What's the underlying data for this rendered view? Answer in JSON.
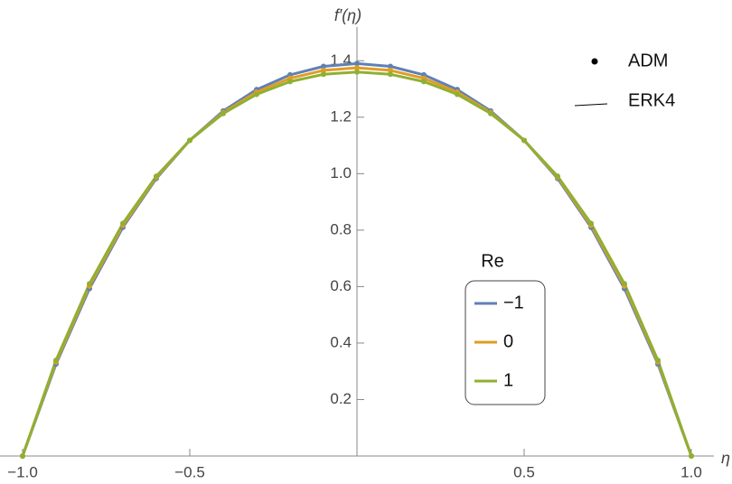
{
  "chart_data": {
    "type": "line",
    "x_label": "η",
    "y_label": "f′(η)",
    "x": [
      -1,
      -0.9,
      -0.8,
      -0.7,
      -0.6,
      -0.5,
      -0.4,
      -0.3,
      -0.2,
      -0.1,
      0,
      0.1,
      0.2,
      0.3,
      0.4,
      0.5,
      0.6,
      0.7,
      0.8,
      0.9,
      1
    ],
    "series": [
      {
        "name": "−1",
        "color": "#5e81b5",
        "values": [
          0,
          0.326,
          0.593,
          0.81,
          0.983,
          1.118,
          1.222,
          1.298,
          1.35,
          1.38,
          1.39,
          1.38,
          1.35,
          1.298,
          1.222,
          1.118,
          0.983,
          0.81,
          0.593,
          0.326,
          0
        ]
      },
      {
        "name": "0",
        "color": "#e19c24",
        "values": [
          0,
          0.333,
          0.602,
          0.817,
          0.987,
          1.118,
          1.217,
          1.289,
          1.338,
          1.366,
          1.375,
          1.366,
          1.338,
          1.289,
          1.217,
          1.118,
          0.987,
          0.817,
          0.602,
          0.333,
          0
        ]
      },
      {
        "name": "1",
        "color": "#8fb032",
        "values": [
          0,
          0.339,
          0.61,
          0.824,
          0.991,
          1.118,
          1.213,
          1.281,
          1.326,
          1.352,
          1.36,
          1.352,
          1.326,
          1.281,
          1.213,
          1.118,
          0.991,
          0.824,
          0.61,
          0.339,
          0
        ]
      }
    ],
    "legend_title": "Re",
    "style_legend": [
      "ADM",
      "ERK4"
    ],
    "xlim": [
      -1,
      1
    ],
    "ylim": [
      0,
      1.5
    ],
    "xticks": [
      {
        "value": -1,
        "label": "−1.0"
      },
      {
        "value": -0.5,
        "label": "−0.5"
      },
      0.5,
      {
        "value": 1,
        "label": "1.0"
      }
    ],
    "yticks": [
      0.2,
      0.4,
      0.6,
      0.8,
      {
        "value": 1,
        "label": "1.0"
      },
      1.2,
      1.4
    ]
  }
}
